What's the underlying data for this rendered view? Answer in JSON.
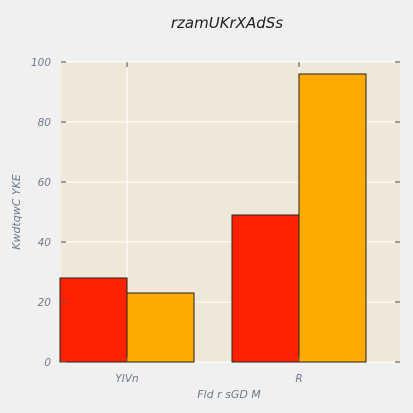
{
  "chart_data": {
    "type": "bar",
    "title": "rzamUKrXAdSs",
    "xlabel": "Fld r sGD  M",
    "ylabel": "KwdtqwC YKE",
    "categories": [
      "YIVn",
      "R"
    ],
    "series": [
      {
        "values": [
          28,
          49
        ],
        "color": "#ff2200"
      },
      {
        "values": [
          23,
          96
        ],
        "color": "#ffaa00"
      }
    ],
    "ylim": [
      0,
      100
    ],
    "yticks": [
      0,
      20,
      40,
      60,
      80,
      100
    ],
    "grid": true
  },
  "colors": {
    "figure_background": "#f0f0f0",
    "plot_background": "#efe8d8",
    "grid": "#ffffff",
    "text": "#6b7b8c"
  }
}
